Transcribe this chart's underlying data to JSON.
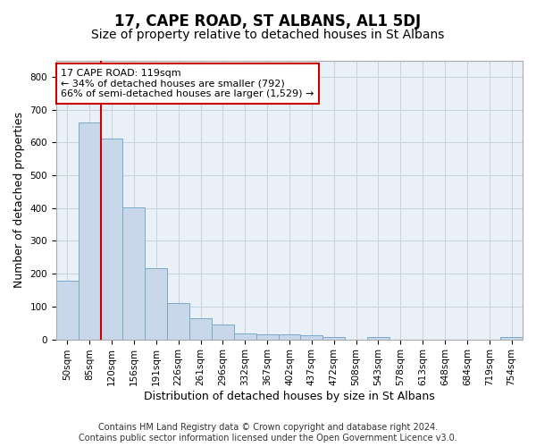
{
  "title": "17, CAPE ROAD, ST ALBANS, AL1 5DJ",
  "subtitle": "Size of property relative to detached houses in St Albans",
  "xlabel": "Distribution of detached houses by size in St Albans",
  "ylabel": "Number of detached properties",
  "footnote1": "Contains HM Land Registry data © Crown copyright and database right 2024.",
  "footnote2": "Contains public sector information licensed under the Open Government Licence v3.0.",
  "bar_color": "#c8d8ea",
  "bar_edge_color": "#7aaac8",
  "highlight_line_color": "#cc0000",
  "annotation_box_color": "#cc0000",
  "background_color": "#ffffff",
  "plot_bg_color": "#eaf0f8",
  "grid_color": "#c8d4e0",
  "categories": [
    "50sqm",
    "85sqm",
    "120sqm",
    "156sqm",
    "191sqm",
    "226sqm",
    "261sqm",
    "296sqm",
    "332sqm",
    "367sqm",
    "402sqm",
    "437sqm",
    "472sqm",
    "508sqm",
    "543sqm",
    "578sqm",
    "613sqm",
    "648sqm",
    "684sqm",
    "719sqm",
    "754sqm"
  ],
  "values": [
    178,
    660,
    612,
    402,
    218,
    110,
    64,
    46,
    17,
    16,
    14,
    13,
    8,
    0,
    8,
    0,
    0,
    0,
    0,
    0,
    7
  ],
  "ylim": [
    0,
    850
  ],
  "yticks": [
    0,
    100,
    200,
    300,
    400,
    500,
    600,
    700,
    800
  ],
  "highlight_bin_index": 2,
  "annotation_text_line1": "17 CAPE ROAD: 119sqm",
  "annotation_text_line2": "← 34% of detached houses are smaller (792)",
  "annotation_text_line3": "66% of semi-detached houses are larger (1,529) →",
  "title_fontsize": 12,
  "subtitle_fontsize": 10,
  "axis_label_fontsize": 9,
  "tick_fontsize": 7.5,
  "annotation_fontsize": 8,
  "footnote_fontsize": 7
}
